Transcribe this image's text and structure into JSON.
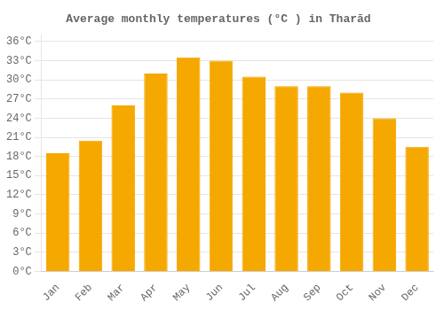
{
  "chart_data": {
    "type": "bar",
    "title": "Average monthly temperatures (°C ) in Tharād",
    "categories": [
      "Jan",
      "Feb",
      "Mar",
      "Apr",
      "May",
      "Jun",
      "Jul",
      "Aug",
      "Sep",
      "Oct",
      "Nov",
      "Dec"
    ],
    "values": [
      18.5,
      20.5,
      26.0,
      31.0,
      33.5,
      33.0,
      30.5,
      29.0,
      29.0,
      28.0,
      24.0,
      19.5
    ],
    "color": "#F5A800",
    "ylim": [
      0,
      37
    ],
    "yticks": [
      {
        "value": 0,
        "label": "0°C"
      },
      {
        "value": 3,
        "label": "3°C"
      },
      {
        "value": 6,
        "label": "6°C"
      },
      {
        "value": 9,
        "label": "9°C"
      },
      {
        "value": 12,
        "label": "12°C"
      },
      {
        "value": 15,
        "label": "15°C"
      },
      {
        "value": 18,
        "label": "18°C"
      },
      {
        "value": 21,
        "label": "21°C"
      },
      {
        "value": 24,
        "label": "24°C"
      },
      {
        "value": 27,
        "label": "27°C"
      },
      {
        "value": 30,
        "label": "30°C"
      },
      {
        "value": 33,
        "label": "33°C"
      },
      {
        "value": 36,
        "label": "36°C"
      }
    ],
    "grid": true
  }
}
